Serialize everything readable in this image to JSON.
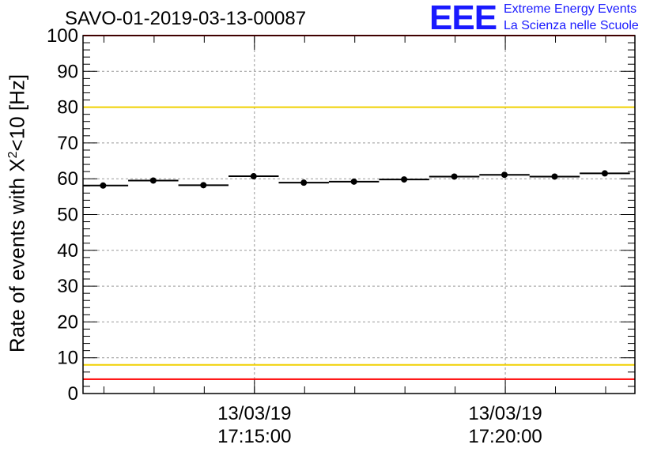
{
  "title": "SAVO-01-2019-03-13-00087",
  "logo": {
    "mark": "EEE",
    "line1": "Extreme Energy Events",
    "line2": "La Scienza nelle Scuole"
  },
  "colors": {
    "red_line": "#ff0000",
    "yellow_line": "#f0d000",
    "points": "#000000",
    "logo": "#1a1aff",
    "grid": "#999999"
  },
  "chart_data": {
    "type": "scatter",
    "title": "SAVO-01-2019-03-13-00087",
    "ylabel_prefix": "Rate of events with X",
    "ylabel_sup": "2",
    "ylabel_suffix": "<10 [Hz]",
    "ylim": [
      0,
      100
    ],
    "yticks": [
      "0",
      "10",
      "20",
      "30",
      "40",
      "50",
      "60",
      "70",
      "80",
      "90",
      "100"
    ],
    "x_time_range": [
      "2019-03-13 17:11:35",
      "2019-03-13 17:22:35"
    ],
    "x_major_ticks": [
      {
        "time": "17:15:00",
        "date_label": "13/03/19",
        "time_label": "17:15:00"
      },
      {
        "time": "17:20:00",
        "date_label": "13/03/19",
        "time_label": "17:20:00"
      }
    ],
    "grid": true,
    "reference_lines": [
      {
        "value": 100,
        "color": "red"
      },
      {
        "value": 80,
        "color": "yellow"
      },
      {
        "value": 8,
        "color": "yellow"
      },
      {
        "value": 4,
        "color": "red"
      }
    ],
    "points": [
      {
        "x": "17:11:59",
        "y": 58.1
      },
      {
        "x": "17:12:59",
        "y": 59.5
      },
      {
        "x": "17:13:59",
        "y": 58.2
      },
      {
        "x": "17:14:59",
        "y": 60.7
      },
      {
        "x": "17:15:59",
        "y": 58.9
      },
      {
        "x": "17:16:59",
        "y": 59.2
      },
      {
        "x": "17:17:59",
        "y": 59.8
      },
      {
        "x": "17:18:59",
        "y": 60.6
      },
      {
        "x": "17:19:59",
        "y": 61.1
      },
      {
        "x": "17:20:59",
        "y": 60.6
      },
      {
        "x": "17:21:59",
        "y": 61.5
      }
    ],
    "bin_width_seconds": 60
  }
}
